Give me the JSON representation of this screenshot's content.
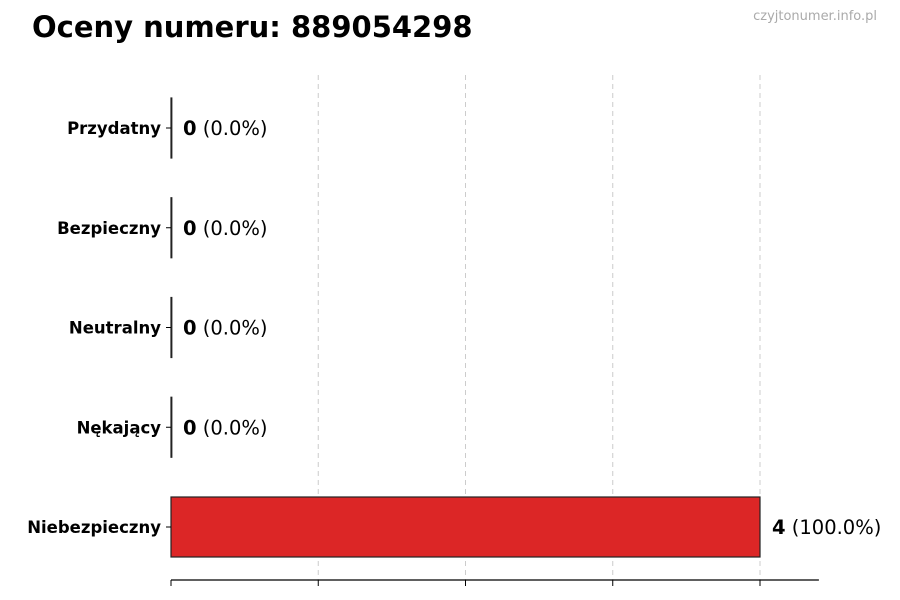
{
  "chart_data": {
    "type": "bar",
    "orientation": "horizontal",
    "title": "Oceny numeru: 889054298",
    "watermark": "czyjtonumer.info.pl",
    "categories": [
      "Przydatny",
      "Bezpieczny",
      "Neutralny",
      "Nękający",
      "Niebezpieczny"
    ],
    "values": [
      0,
      0,
      0,
      0,
      4
    ],
    "labels": [
      "(0.0%)",
      "(0.0%)",
      "(0.0%)",
      "(0.0%)",
      "(100.0%)"
    ],
    "colors": [
      "#2e7d32",
      "#43a047",
      "#9e9e9e",
      "#fb8c00",
      "#dc2626"
    ],
    "xlim": [
      0,
      4.4
    ],
    "xticks": [
      0,
      1,
      2,
      3,
      4
    ],
    "grid": "x-dashed",
    "xlabel": "",
    "ylabel": ""
  }
}
